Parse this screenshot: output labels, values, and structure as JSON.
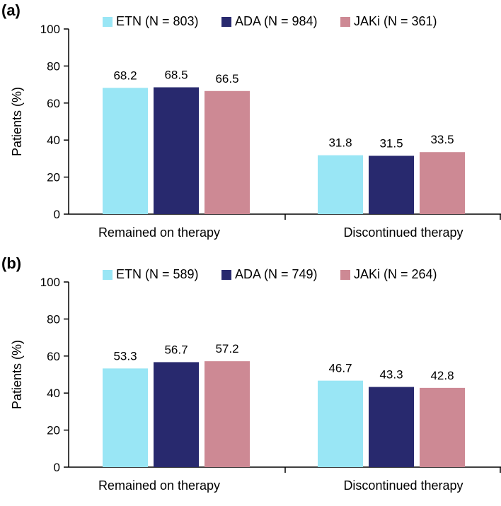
{
  "colors": {
    "ETN": "#99e6f5",
    "ADA": "#28296e",
    "JAKi": "#cd8994",
    "axis": "#000000"
  },
  "chart_data": [
    {
      "panel_label": "(a)",
      "type": "bar",
      "ylabel": "Patients (%)",
      "ylim": [
        0,
        100
      ],
      "yticks": [
        0,
        20,
        40,
        60,
        80,
        100
      ],
      "categories": [
        "Remained on therapy",
        "Discontinued therapy"
      ],
      "legend_position": "top",
      "series": [
        {
          "name": "ETN (N = 803)",
          "color": "#99e6f5",
          "values": [
            68.2,
            31.8
          ],
          "labels": [
            "68.2",
            "31.8"
          ]
        },
        {
          "name": "ADA (N = 984)",
          "color": "#28296e",
          "values": [
            68.5,
            31.5
          ],
          "labels": [
            "68.5",
            "31.5"
          ]
        },
        {
          "name": "JAKi (N = 361)",
          "color": "#cd8994",
          "values": [
            66.5,
            33.5
          ],
          "labels": [
            "66.5",
            "33.5"
          ]
        }
      ]
    },
    {
      "panel_label": "(b)",
      "type": "bar",
      "ylabel": "Patients (%)",
      "ylim": [
        0,
        100
      ],
      "yticks": [
        0,
        20,
        40,
        60,
        80,
        100
      ],
      "categories": [
        "Remained on therapy",
        "Discontinued therapy"
      ],
      "legend_position": "top",
      "series": [
        {
          "name": "ETN (N = 589)",
          "color": "#99e6f5",
          "values": [
            53.3,
            46.7
          ],
          "labels": [
            "53.3",
            "46.7"
          ]
        },
        {
          "name": "ADA (N = 749)",
          "color": "#28296e",
          "values": [
            56.7,
            43.3
          ],
          "labels": [
            "56.7",
            "43.3"
          ]
        },
        {
          "name": "JAKi (N = 264)",
          "color": "#cd8994",
          "values": [
            57.2,
            42.8
          ],
          "labels": [
            "57.2",
            "42.8"
          ]
        }
      ]
    }
  ]
}
